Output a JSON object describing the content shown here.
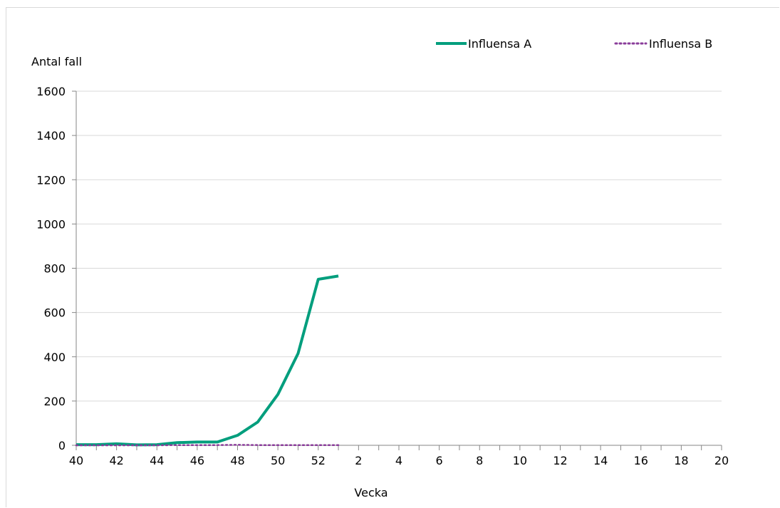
{
  "chart_data": {
    "type": "line",
    "ylabel": "Antal fall",
    "xlabel": "Vecka",
    "ylim": [
      0,
      1600
    ],
    "yticks": [
      "0",
      "200",
      "400",
      "600",
      "800",
      "1000",
      "1200",
      "1400",
      "1600"
    ],
    "x_categories": [
      40,
      41,
      42,
      43,
      44,
      45,
      46,
      47,
      48,
      49,
      50,
      51,
      52,
      1,
      2,
      3,
      4,
      5,
      6,
      7,
      8,
      9,
      10,
      11,
      12,
      13,
      14,
      15,
      16,
      17,
      18,
      19,
      20
    ],
    "xtick_labels": [
      "40",
      "",
      "42",
      "",
      "44",
      "",
      "46",
      "",
      "48",
      "",
      "50",
      "",
      "52",
      "",
      "2",
      "",
      "4",
      "",
      "6",
      "",
      "8",
      "",
      "10",
      "",
      "12",
      "",
      "14",
      "",
      "16",
      "",
      "18",
      "",
      "20"
    ],
    "grid": true,
    "legend_position": "top-right",
    "series": [
      {
        "name": "Influensa A",
        "color": "#009e7d",
        "style": "solid",
        "values": [
          3,
          3,
          7,
          2,
          3,
          12,
          15,
          15,
          45,
          105,
          230,
          415,
          750,
          765
        ]
      },
      {
        "name": "Influensa B",
        "color": "#8a3d9a",
        "style": "dotted",
        "values": [
          0,
          0,
          0,
          0,
          0,
          1,
          1,
          1,
          2,
          1,
          1,
          1,
          1,
          1
        ]
      }
    ]
  }
}
